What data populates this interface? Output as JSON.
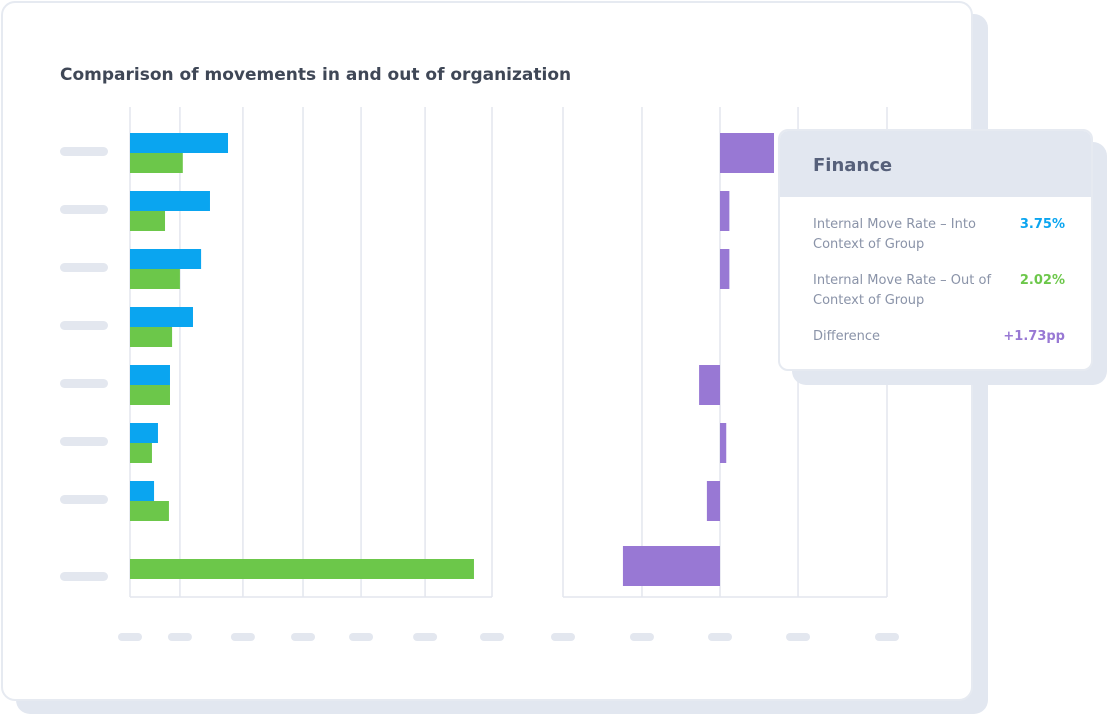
{
  "chart_data": [
    {
      "type": "hbar",
      "title": "Comparison of movements in and out of organization",
      "categories": [
        null,
        null,
        null,
        null,
        null,
        null,
        null,
        null
      ],
      "series": [
        {
          "color": "#0aa5f0",
          "values": [
            3.75,
            3.06,
            2.72,
            2.41,
            1.53,
            1.07,
            0.92,
            null
          ]
        },
        {
          "color": "#6cc74a",
          "values": [
            2.02,
            1.34,
            1.91,
            1.61,
            1.53,
            0.84,
            1.49,
            13.16
          ]
        }
      ],
      "xlim": [
        0,
        13.85
      ],
      "xticks": [
        0,
        1.91,
        4.32,
        6.62,
        8.84,
        11.29,
        13.85
      ],
      "grid": true
    },
    {
      "type": "hbar",
      "categories": [
        null,
        null,
        null,
        null,
        null,
        null,
        null,
        null
      ],
      "values": [
        1.73,
        0.3,
        0.3,
        0,
        -0.67,
        0.2,
        -0.42,
        -3.11
      ],
      "color": "#9878d4",
      "xlim": [
        -5.03,
        5.35
      ],
      "xticks": [
        -5.03,
        -2.5,
        0,
        2.5,
        5.35
      ],
      "grid": true
    }
  ],
  "tooltip": {
    "title": "Finance",
    "rows": [
      {
        "label": "Internal Move Rate – Into Context of Group",
        "value": "3.75%",
        "color": "#0aa5f0"
      },
      {
        "label": "Internal Move Rate – Out of Context of Group",
        "value": "2.02%",
        "color": "#6cc74a"
      },
      {
        "label": "Difference",
        "value": "+1.73pp",
        "color": "#9878d4"
      }
    ]
  }
}
